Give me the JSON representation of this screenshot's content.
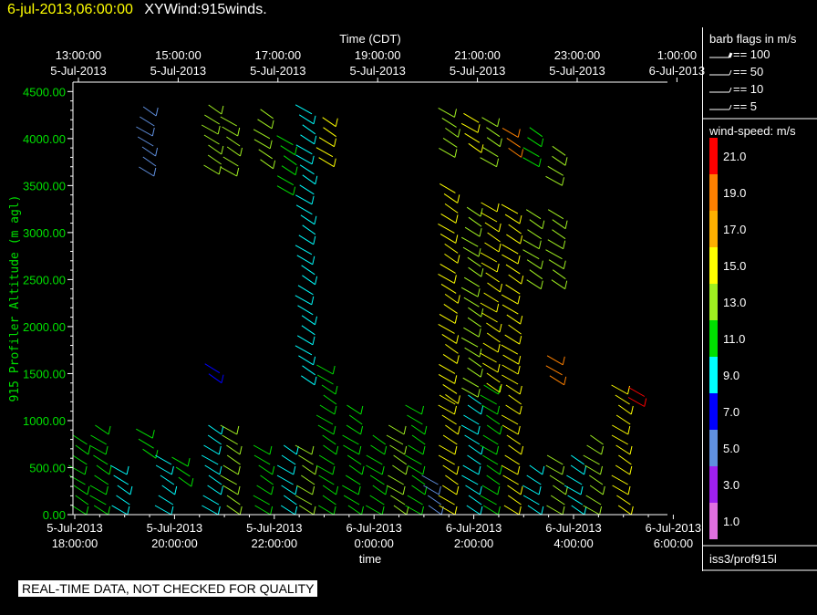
{
  "header": {
    "date_label": "6-jul-2013,06:00:00",
    "product_label": "XYWind:915winds."
  },
  "legend": {
    "barb_title": "barb flags in m/s",
    "barb_items": [
      "== 100",
      "== 50",
      "== 10",
      "== 5"
    ],
    "speed_title": "wind-speed: m/s",
    "speed_levels": [
      {
        "label": "21.0",
        "color": "#ff0000"
      },
      {
        "label": "19.0",
        "color": "#ff8000"
      },
      {
        "label": "17.0",
        "color": "#ffb000"
      },
      {
        "label": "15.0",
        "color": "#ffff00"
      },
      {
        "label": "13.0",
        "color": "#a0f020"
      },
      {
        "label": "11.0",
        "color": "#00e000"
      },
      {
        "label": "9.0",
        "color": "#00ffff"
      },
      {
        "label": "7.0",
        "color": "#0000ff"
      },
      {
        "label": "5.0",
        "color": "#6090e0"
      },
      {
        "label": "3.0",
        "color": "#a020f0"
      },
      {
        "label": "1.0",
        "color": "#e070e0"
      }
    ],
    "station": "iss3/prof915l"
  },
  "footer": {
    "quality_note": "REAL-TIME DATA, NOT CHECKED FOR QUALITY"
  },
  "chart_data": {
    "type": "scatter",
    "xlabel_bottom": "time",
    "xlabel_top": "Time (CDT)",
    "ylabel": "915 Profiler Altitude (m agl)",
    "ylim": [
      0,
      4600
    ],
    "yticks": [
      "0.00",
      "500.00",
      "1000.00",
      "1500.00",
      "2000.00",
      "2500.00",
      "3000.00",
      "3500.00",
      "4000.00",
      "4500.00"
    ],
    "bottom_ticks": [
      {
        "date": "5-Jul-2013",
        "time": "18:00:00"
      },
      {
        "date": "5-Jul-2013",
        "time": "20:00:00"
      },
      {
        "date": "5-Jul-2013",
        "time": "22:00:00"
      },
      {
        "date": "6-Jul-2013",
        "time": "0:00:00"
      },
      {
        "date": "6-Jul-2013",
        "time": "2:00:00"
      },
      {
        "date": "6-Jul-2013",
        "time": "4:00:00"
      },
      {
        "date": "6-Jul-2013",
        "time": "6:00:00"
      }
    ],
    "top_ticks": [
      {
        "time": "13:00:00",
        "date": "5-Jul-2013"
      },
      {
        "time": "15:00:00",
        "date": "5-Jul-2013"
      },
      {
        "time": "17:00:00",
        "date": "5-Jul-2013"
      },
      {
        "time": "19:00:00",
        "date": "5-Jul-2013"
      },
      {
        "time": "21:00:00",
        "date": "5-Jul-2013"
      },
      {
        "time": "23:00:00",
        "date": "5-Jul-2013"
      },
      {
        "time": "1:00:00",
        "date": "6-Jul-2013"
      }
    ],
    "xlim_hours": [
      17.65,
      30.35
    ],
    "profiles": [
      {
        "t": 17.9,
        "segments": [
          {
            "z0": 0,
            "z1": 820,
            "spd": 10
          }
        ]
      },
      {
        "t": 18.35,
        "segments": [
          {
            "z0": 0,
            "z1": 860,
            "spd": 11
          }
        ]
      },
      {
        "t": 18.8,
        "segments": [
          {
            "z0": 0,
            "z1": 430,
            "spd": 9
          }
        ]
      },
      {
        "t": 19.35,
        "segments": [
          {
            "z0": 600,
            "z1": 820,
            "spd": 11
          },
          {
            "z0": 3600,
            "z1": 4280,
            "spd": 4
          }
        ]
      },
      {
        "t": 19.75,
        "segments": [
          {
            "z0": 0,
            "z1": 640,
            "spd": 8
          }
        ]
      },
      {
        "t": 20.1,
        "segments": [
          {
            "z0": 300,
            "z1": 520,
            "spd": 11
          }
        ]
      },
      {
        "t": 20.75,
        "segments": [
          {
            "z0": 0,
            "z1": 880,
            "spd": 8
          },
          {
            "z0": 1400,
            "z1": 1560,
            "spd": 7
          },
          {
            "z0": 3620,
            "z1": 4300,
            "spd": 12
          }
        ]
      },
      {
        "t": 21.15,
        "segments": [
          {
            "z0": 0,
            "z1": 860,
            "spd": 12
          },
          {
            "z0": 3600,
            "z1": 4180,
            "spd": 12
          }
        ]
      },
      {
        "t": 21.85,
        "segments": [
          {
            "z0": 0,
            "z1": 700,
            "spd": 11
          },
          {
            "z0": 3680,
            "z1": 4300,
            "spd": 13
          }
        ]
      },
      {
        "t": 22.35,
        "segments": [
          {
            "z0": 0,
            "z1": 700,
            "spd": 9
          },
          {
            "z0": 3400,
            "z1": 4000,
            "spd": 11
          }
        ]
      },
      {
        "t": 22.75,
        "segments": [
          {
            "z0": 0,
            "z1": 680,
            "spd": 12
          },
          {
            "z0": 1380,
            "z1": 4280,
            "spd": 9
          }
        ]
      },
      {
        "t": 23.2,
        "segments": [
          {
            "z0": 0,
            "z1": 1580,
            "spd": 11
          },
          {
            "z0": 3700,
            "z1": 4180,
            "spd": 14
          }
        ]
      },
      {
        "t": 23.75,
        "segments": [
          {
            "z0": 0,
            "z1": 1120,
            "spd": 10
          }
        ]
      },
      {
        "t": 24.25,
        "segments": [
          {
            "z0": 0,
            "z1": 780,
            "spd": 11
          }
        ]
      },
      {
        "t": 24.7,
        "segments": [
          {
            "z0": 0,
            "z1": 960,
            "spd": 13
          }
        ]
      },
      {
        "t": 25.1,
        "segments": [
          {
            "z0": 0,
            "z1": 1080,
            "spd": 10
          }
        ]
      },
      {
        "t": 25.45,
        "segments": [
          {
            "z0": 0,
            "z1": 360,
            "spd": 4
          }
        ]
      },
      {
        "t": 25.8,
        "segments": [
          {
            "z0": 0,
            "z1": 1180,
            "spd": 14
          },
          {
            "z0": 1180,
            "z1": 3500,
            "spd": 14
          },
          {
            "z0": 3800,
            "z1": 4280,
            "spd": 12
          }
        ]
      },
      {
        "t": 26.3,
        "segments": [
          {
            "z0": 0,
            "z1": 1250,
            "spd": 9
          },
          {
            "z0": 1250,
            "z1": 3250,
            "spd": 13
          },
          {
            "z0": 3850,
            "z1": 4250,
            "spd": 14
          }
        ]
      },
      {
        "t": 26.7,
        "segments": [
          {
            "z0": 0,
            "z1": 1300,
            "spd": 11
          },
          {
            "z0": 1300,
            "z1": 3280,
            "spd": 15
          },
          {
            "z0": 3700,
            "z1": 4200,
            "spd": 12
          }
        ]
      },
      {
        "t": 27.15,
        "segments": [
          {
            "z0": 0,
            "z1": 1600,
            "spd": 14
          },
          {
            "z0": 1600,
            "z1": 3250,
            "spd": 15
          },
          {
            "z0": 3800,
            "z1": 4100,
            "spd": 18
          }
        ]
      },
      {
        "t": 27.6,
        "segments": [
          {
            "z0": 0,
            "z1": 520,
            "spd": 8
          },
          {
            "z0": 2400,
            "z1": 3200,
            "spd": 12
          },
          {
            "z0": 3700,
            "z1": 4050,
            "spd": 11
          }
        ]
      },
      {
        "t": 28.1,
        "segments": [
          {
            "z0": 0,
            "z1": 560,
            "spd": 12
          },
          {
            "z0": 1380,
            "z1": 1600,
            "spd": 18
          },
          {
            "z0": 2400,
            "z1": 3150,
            "spd": 12
          },
          {
            "z0": 3500,
            "z1": 3900,
            "spd": 12
          }
        ]
      },
      {
        "t": 28.5,
        "segments": [
          {
            "z0": 0,
            "z1": 600,
            "spd": 9
          }
        ]
      },
      {
        "t": 28.9,
        "segments": [
          {
            "z0": 0,
            "z1": 780,
            "spd": 12
          }
        ]
      },
      {
        "t": 29.5,
        "segments": [
          {
            "z0": 0,
            "z1": 1350,
            "spd": 15
          }
        ]
      },
      {
        "t": 29.85,
        "segments": [
          {
            "z0": 1150,
            "z1": 1360,
            "spd": 21
          }
        ]
      }
    ]
  }
}
